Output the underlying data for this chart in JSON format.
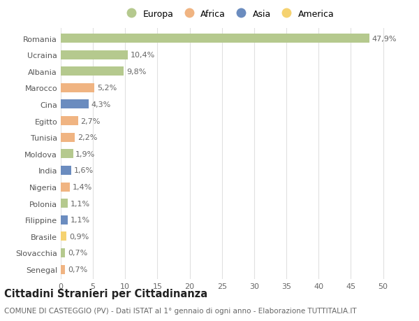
{
  "categories": [
    "Romania",
    "Ucraina",
    "Albania",
    "Marocco",
    "Cina",
    "Egitto",
    "Tunisia",
    "Moldova",
    "India",
    "Nigeria",
    "Polonia",
    "Filippine",
    "Brasile",
    "Slovacchia",
    "Senegal"
  ],
  "values": [
    47.9,
    10.4,
    9.8,
    5.2,
    4.3,
    2.7,
    2.2,
    1.9,
    1.6,
    1.4,
    1.1,
    1.1,
    0.9,
    0.7,
    0.7
  ],
  "labels": [
    "47,9%",
    "10,4%",
    "9,8%",
    "5,2%",
    "4,3%",
    "2,7%",
    "2,2%",
    "1,9%",
    "1,6%",
    "1,4%",
    "1,1%",
    "1,1%",
    "0,9%",
    "0,7%",
    "0,7%"
  ],
  "continents": [
    "Europa",
    "Europa",
    "Europa",
    "Africa",
    "Asia",
    "Africa",
    "Africa",
    "Europa",
    "Asia",
    "Africa",
    "Europa",
    "Asia",
    "America",
    "Europa",
    "Africa"
  ],
  "colors": {
    "Europa": "#b5c98e",
    "Africa": "#f0b482",
    "Asia": "#6b8cbf",
    "America": "#f5d270"
  },
  "legend_order": [
    "Europa",
    "Africa",
    "Asia",
    "America"
  ],
  "xlim": [
    0,
    52
  ],
  "xticks": [
    0,
    5,
    10,
    15,
    20,
    25,
    30,
    35,
    40,
    45,
    50
  ],
  "title": "Cittadini Stranieri per Cittadinanza",
  "subtitle": "COMUNE DI CASTEGGIO (PV) - Dati ISTAT al 1° gennaio di ogni anno - Elaborazione TUTTITALIA.IT",
  "bg_color": "#ffffff",
  "grid_color": "#e0e0e0",
  "bar_height": 0.55,
  "title_fontsize": 10.5,
  "subtitle_fontsize": 7.5,
  "label_fontsize": 8,
  "tick_fontsize": 8,
  "legend_fontsize": 9
}
